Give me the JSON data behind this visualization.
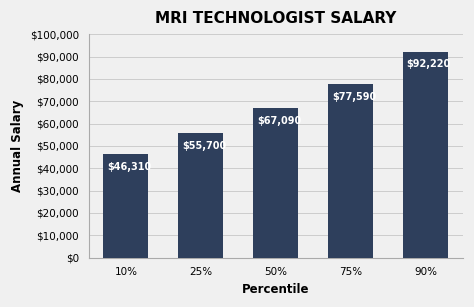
{
  "title": "MRI TECHNOLOGIST SALARY",
  "categories": [
    "10%",
    "25%",
    "50%",
    "75%",
    "90%"
  ],
  "values": [
    46310,
    55700,
    67090,
    77590,
    92220
  ],
  "labels": [
    "$46,310",
    "$55,700",
    "$67,090",
    "$77,590",
    "$92,220"
  ],
  "bar_color": "#2E3F5C",
  "label_color": "#ffffff",
  "background_color": "#f0f0f0",
  "xlabel": "Percentile",
  "ylabel": "Annual Salary",
  "ylim": [
    0,
    100000
  ],
  "ytick_step": 10000,
  "title_fontsize": 11,
  "axis_label_fontsize": 8.5,
  "tick_fontsize": 7.5,
  "bar_label_fontsize": 7,
  "grid_color": "#cccccc",
  "bar_width": 0.6
}
